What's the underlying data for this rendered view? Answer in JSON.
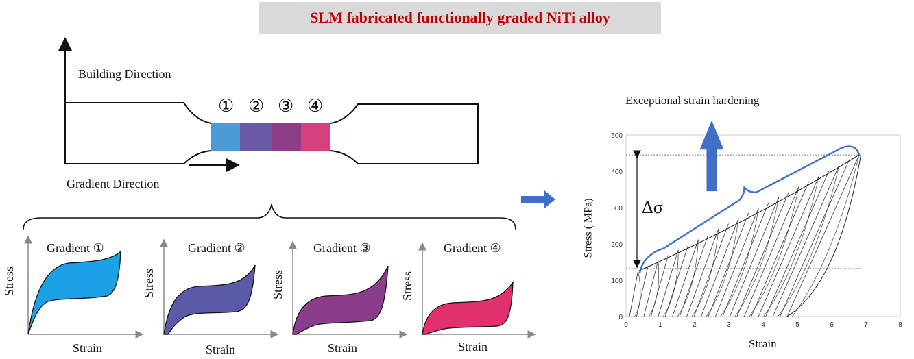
{
  "title": "SLM fabricated functionally graded NiTi alloy",
  "specimen": {
    "building_direction": "Building Direction",
    "gradient_direction": "Gradient Direction",
    "zones": [
      {
        "label": "①",
        "color": "#4a9ad6"
      },
      {
        "label": "②",
        "color": "#6a5aa8"
      },
      {
        "label": "③",
        "color": "#8e3e88"
      },
      {
        "label": "④",
        "color": "#d6407e"
      }
    ]
  },
  "gradient_plots": [
    {
      "title": "Gradient ①",
      "xlabel": "Strain",
      "ylabel": "Stress",
      "fill": "#1aa1e6"
    },
    {
      "title": "Gradient ②",
      "xlabel": "Strain",
      "ylabel": "Stress",
      "fill": "#5b5aa8"
    },
    {
      "title": "Gradient ③",
      "xlabel": "Strain",
      "ylabel": "Stress",
      "fill": "#8a3d8a"
    },
    {
      "title": "Gradient ④",
      "xlabel": "Strain",
      "ylabel": "Stress",
      "fill": "#e0306e"
    }
  ],
  "chart": {
    "annotation": "Exceptional strain hardening",
    "delta_label": "Δσ",
    "ylabel": "Stress (  MPa)",
    "xlabel": "Strain",
    "x_ticks": [
      "0",
      "1",
      "2",
      "3",
      "4",
      "5",
      "6",
      "7",
      "8"
    ],
    "y_ticks": [
      "0",
      "100",
      "200",
      "300",
      "400",
      "500"
    ],
    "xlim": [
      0,
      8
    ],
    "ylim": [
      0,
      500
    ],
    "reference_lines_mpa": [
      445,
      132
    ],
    "hardening_curve_start": [
      0.4,
      140
    ],
    "hardening_curve_end": [
      6.8,
      445
    ],
    "accent_color": "#3f6fc6"
  }
}
